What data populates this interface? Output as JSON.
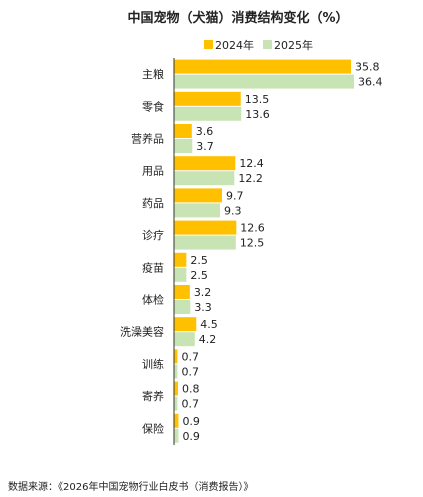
{
  "chart_data": {
    "type": "bar",
    "orientation": "horizontal",
    "title": "中国宠物（犬猫）消费结构变化（%）",
    "categories": [
      "主粮",
      "零食",
      "营养品",
      "用品",
      "药品",
      "诊疗",
      "疫苗",
      "体检",
      "洗澡美容",
      "训练",
      "寄养",
      "保险"
    ],
    "series": [
      {
        "name": "2024年",
        "color": "#FFC000",
        "values": [
          35.8,
          13.5,
          3.6,
          12.4,
          9.7,
          12.6,
          2.5,
          3.2,
          4.5,
          0.7,
          0.8,
          0.9
        ]
      },
      {
        "name": "2025年",
        "color": "#C8E4B4",
        "values": [
          36.4,
          13.6,
          3.7,
          12.2,
          9.3,
          12.5,
          2.5,
          3.3,
          4.2,
          0.7,
          0.7,
          0.9
        ]
      }
    ],
    "legend_position": "top-right",
    "grid": false,
    "xlim": [
      0,
      40
    ]
  },
  "source": "数据来源：《2026年中国宠物行业白皮书（消费报告）》"
}
